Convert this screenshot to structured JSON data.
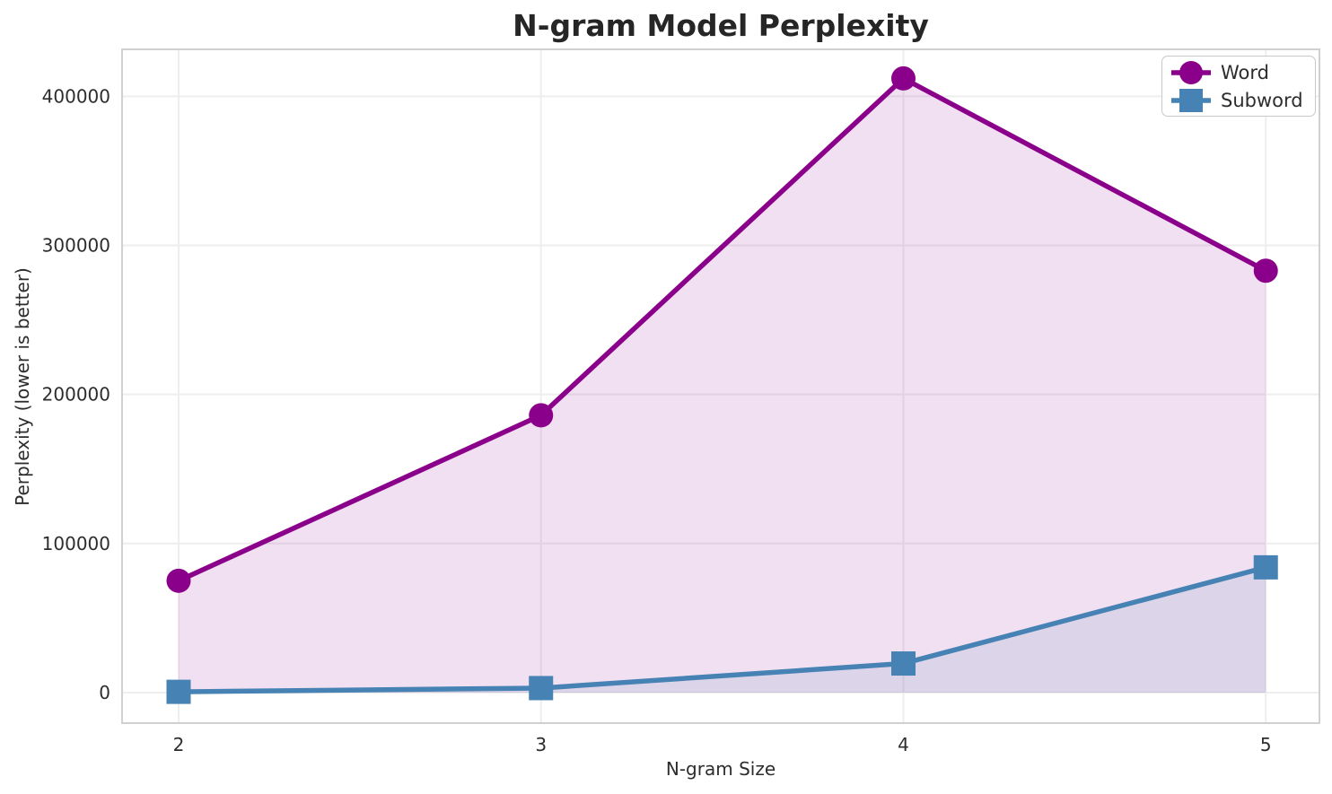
{
  "chart_data": {
    "type": "line",
    "title": "N-gram Model Perplexity",
    "xlabel": "N-gram Size",
    "ylabel": "Perplexity (lower is better)",
    "x": [
      2,
      3,
      4,
      5
    ],
    "x_ticks": [
      "2",
      "3",
      "4",
      "5"
    ],
    "y_ticks": [
      0,
      100000,
      200000,
      300000,
      400000
    ],
    "xlim": [
      1.844,
      5.148
    ],
    "ylim": [
      -20500,
      431500
    ],
    "grid": true,
    "legend_position": "top-right",
    "series": [
      {
        "name": "Word",
        "marker": "circle",
        "color": "#8B008B",
        "fill_to_zero": true,
        "fill_opacity": 0.12,
        "values": [
          75000,
          186000,
          412000,
          283000
        ]
      },
      {
        "name": "Subword",
        "marker": "square",
        "color": "#4682B4",
        "fill_to_zero": true,
        "fill_opacity": 0.12,
        "values": [
          500,
          3000,
          19500,
          84000
        ]
      }
    ],
    "colors": {
      "grid": "#eeeeee",
      "spine": "#d0d0d0",
      "tick_text": "#2d2d2d",
      "title_text": "#262626"
    }
  }
}
